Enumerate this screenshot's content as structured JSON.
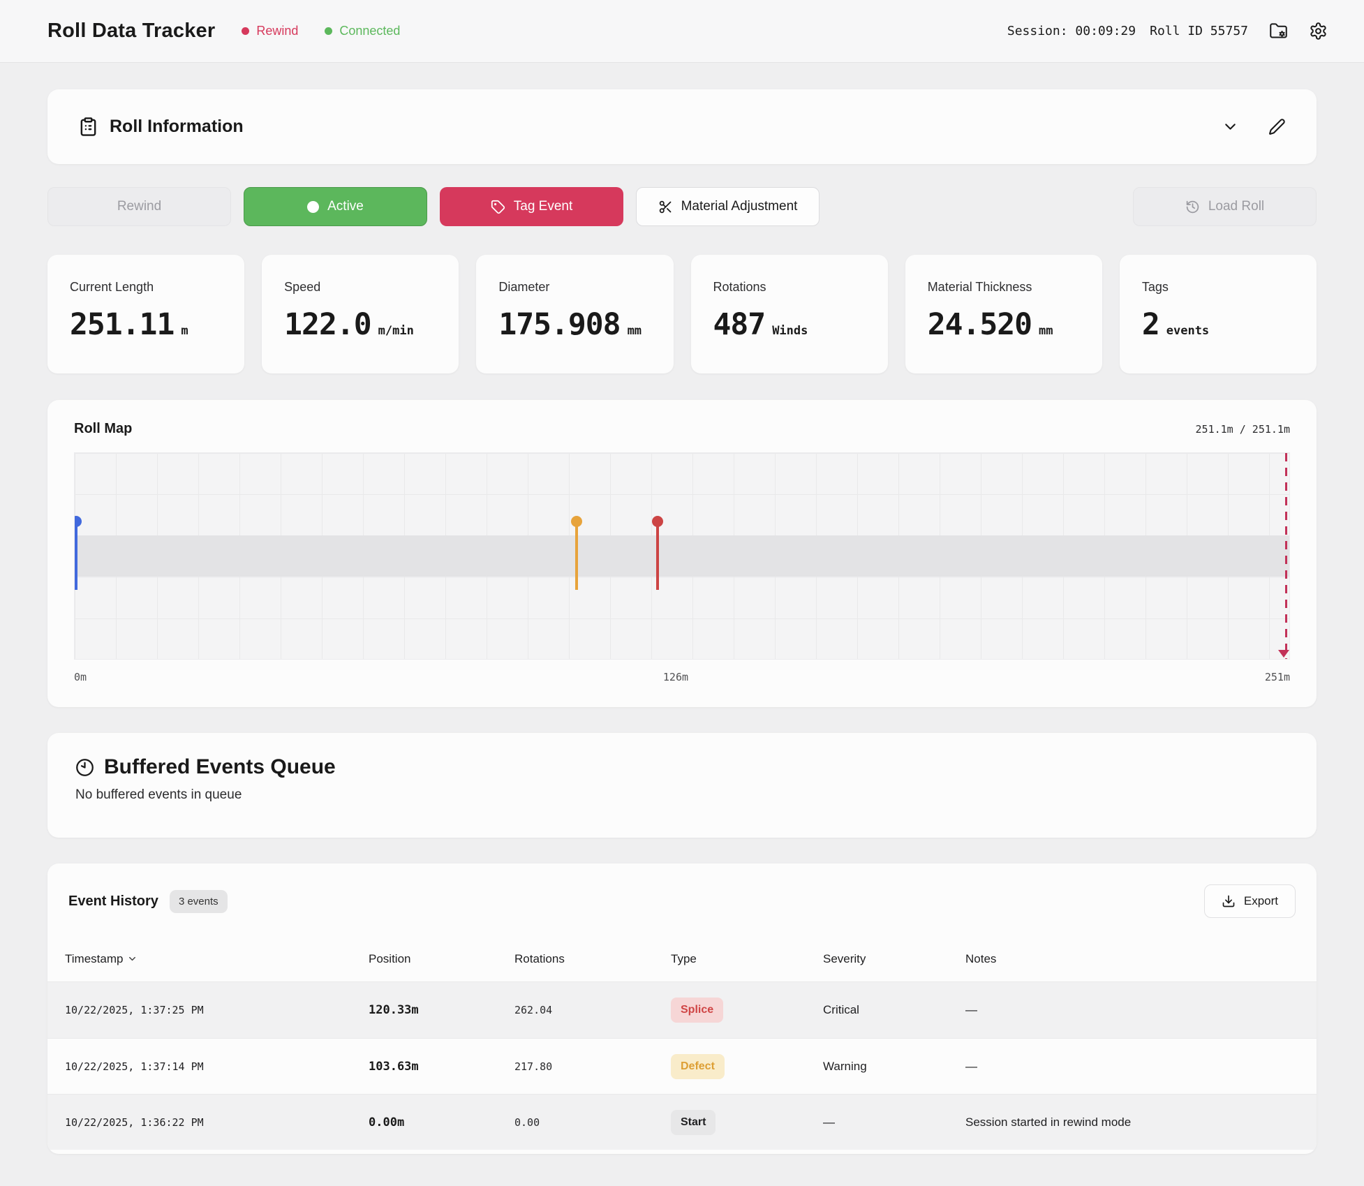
{
  "header": {
    "title": "Roll Data Tracker",
    "status_rewind": "Rewind",
    "status_connected": "Connected",
    "session_label": "Session: 00:09:29",
    "roll_id_label": "Roll ID 55757"
  },
  "roll_info": {
    "title": "Roll Information"
  },
  "toolbar": {
    "rewind": "Rewind",
    "active": "Active",
    "tag_event": "Tag Event",
    "material_adjustment": "Material Adjustment",
    "load_roll": "Load Roll"
  },
  "stats": [
    {
      "label": "Current Length",
      "value": "251.11",
      "unit": "m"
    },
    {
      "label": "Speed",
      "value": "122.0",
      "unit": "m/min"
    },
    {
      "label": "Diameter",
      "value": "175.908",
      "unit": "mm"
    },
    {
      "label": "Rotations",
      "value": "487",
      "unit": "Winds"
    },
    {
      "label": "Material Thickness",
      "value": "24.520",
      "unit": "mm"
    },
    {
      "label": "Tags",
      "value": "2",
      "unit": "events"
    }
  ],
  "roll_map": {
    "title": "Roll Map",
    "progress_label": "251.1m / 251.1m",
    "axis_start": "0m",
    "axis_mid": "126m",
    "axis_end": "251m",
    "markers": [
      {
        "name": "start-marker",
        "position_pct": 0.1,
        "color": "#4169dd"
      },
      {
        "name": "defect-marker",
        "position_pct": 41.3,
        "color": "#e7a33b"
      },
      {
        "name": "splice-marker",
        "position_pct": 48.0,
        "color": "#cc4444"
      }
    ],
    "cursor_color": "#c23158"
  },
  "buffered": {
    "title": "Buffered Events Queue",
    "empty_message": "No buffered events in queue"
  },
  "event_history": {
    "title": "Event History",
    "badge": "3 events",
    "export_label": "Export",
    "columns": {
      "timestamp": "Timestamp",
      "position": "Position",
      "rotations": "Rotations",
      "type": "Type",
      "severity": "Severity",
      "notes": "Notes"
    },
    "rows": [
      {
        "timestamp": "10/22/2025, 1:37:25 PM",
        "position": "120.33m",
        "rotations": "262.04",
        "type": "Splice",
        "type_style": "splice",
        "severity": "Critical",
        "notes": "—"
      },
      {
        "timestamp": "10/22/2025, 1:37:14 PM",
        "position": "103.63m",
        "rotations": "217.80",
        "type": "Defect",
        "type_style": "defect",
        "severity": "Warning",
        "notes": "—"
      },
      {
        "timestamp": "10/22/2025, 1:36:22 PM",
        "position": "0.00m",
        "rotations": "0.00",
        "type": "Start",
        "type_style": "start",
        "severity": "—",
        "notes": "Session started in rewind mode"
      }
    ]
  }
}
